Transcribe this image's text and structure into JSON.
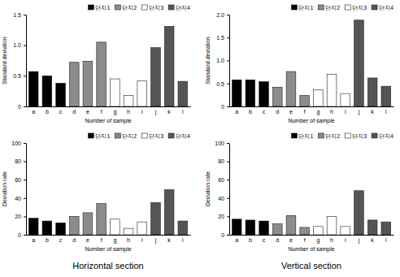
{
  "chart_data": [
    {
      "type": "bar",
      "xlabel": "Number of sample",
      "ylabel": "Standard deviation",
      "categories": [
        "a",
        "b",
        "c",
        "d",
        "e",
        "f",
        "g",
        "h",
        "i",
        "j",
        "k",
        "l"
      ],
      "series": [
        {
          "name": "단지1",
          "color": "#000000",
          "values": [
            0.57,
            0.5,
            0.38,
            null,
            null,
            null,
            null,
            null,
            null,
            null,
            null,
            null
          ]
        },
        {
          "name": "단지2",
          "color": "#8c8c8c",
          "values": [
            null,
            null,
            null,
            0.72,
            0.74,
            1.05,
            null,
            null,
            null,
            null,
            null,
            null
          ]
        },
        {
          "name": "단지3",
          "color": "#ffffff",
          "values": [
            null,
            null,
            null,
            null,
            null,
            null,
            0.45,
            0.18,
            0.42,
            null,
            null,
            null
          ]
        },
        {
          "name": "단지4",
          "color": "#555555",
          "values": [
            null,
            null,
            null,
            null,
            null,
            null,
            null,
            null,
            null,
            0.96,
            1.31,
            0.41
          ]
        }
      ],
      "ylim": [
        0,
        1.5
      ],
      "yticks": [
        0,
        0.5,
        {
          "value": 1,
          "label": "1.0"
        },
        1.5
      ],
      "grid": false,
      "legend": "top-right"
    },
    {
      "type": "bar",
      "xlabel": "Number of sample",
      "ylabel": "Standard deviation",
      "categories": [
        "a",
        "b",
        "c",
        "d",
        "e",
        "f",
        "g",
        "h",
        "i",
        "j",
        "k",
        "l"
      ],
      "series": [
        {
          "name": "단지1",
          "color": "#000000",
          "values": [
            0.58,
            0.58,
            0.54,
            null,
            null,
            null,
            null,
            null,
            null,
            null,
            null,
            null
          ]
        },
        {
          "name": "단지2",
          "color": "#8c8c8c",
          "values": [
            null,
            null,
            null,
            0.42,
            0.76,
            0.24,
            null,
            null,
            null,
            null,
            null,
            null
          ]
        },
        {
          "name": "단지3",
          "color": "#ffffff",
          "values": [
            null,
            null,
            null,
            null,
            null,
            null,
            0.36,
            0.7,
            0.28,
            null,
            null,
            null
          ]
        },
        {
          "name": "단지4",
          "color": "#555555",
          "values": [
            null,
            null,
            null,
            null,
            null,
            null,
            null,
            null,
            null,
            1.88,
            0.62,
            0.44
          ]
        }
      ],
      "ylim": [
        0,
        2
      ],
      "yticks": [
        0,
        0.5,
        {
          "value": 1,
          "label": "1.0"
        },
        1.5,
        {
          "value": 2,
          "label": "2.0"
        }
      ],
      "grid": false,
      "legend": "top-right"
    },
    {
      "type": "bar",
      "xlabel": "Number of sample",
      "ylabel": "Deviation rate",
      "categories": [
        "a",
        "b",
        "c",
        "d",
        "e",
        "f",
        "g",
        "h",
        "i",
        "j",
        "k",
        "l"
      ],
      "series": [
        {
          "name": "단지1",
          "color": "#000000",
          "values": [
            18,
            15,
            13,
            null,
            null,
            null,
            null,
            null,
            null,
            null,
            null,
            null
          ]
        },
        {
          "name": "단지2",
          "color": "#8c8c8c",
          "values": [
            null,
            null,
            null,
            20,
            24,
            34,
            null,
            null,
            null,
            null,
            null,
            null
          ]
        },
        {
          "name": "단지3",
          "color": "#ffffff",
          "values": [
            null,
            null,
            null,
            null,
            null,
            null,
            17,
            7,
            14,
            null,
            null,
            null
          ]
        },
        {
          "name": "단지4",
          "color": "#555555",
          "values": [
            null,
            null,
            null,
            null,
            null,
            null,
            null,
            null,
            null,
            35,
            49,
            15
          ]
        }
      ],
      "ylim": [
        0,
        100
      ],
      "yticks": [
        0,
        20,
        40,
        60,
        80,
        100
      ],
      "grid": false,
      "legend": "top-right"
    },
    {
      "type": "bar",
      "xlabel": "Number of sample",
      "ylabel": "Deviation rate",
      "categories": [
        "a",
        "b",
        "c",
        "d",
        "e",
        "f",
        "g",
        "h",
        "i",
        "j",
        "k",
        "l"
      ],
      "series": [
        {
          "name": "단지1",
          "color": "#000000",
          "values": [
            17,
            16,
            15,
            null,
            null,
            null,
            null,
            null,
            null,
            null,
            null,
            null
          ]
        },
        {
          "name": "단지2",
          "color": "#8c8c8c",
          "values": [
            null,
            null,
            null,
            12,
            21,
            8,
            null,
            null,
            null,
            null,
            null,
            null
          ]
        },
        {
          "name": "단지3",
          "color": "#ffffff",
          "values": [
            null,
            null,
            null,
            null,
            null,
            null,
            9,
            20,
            9,
            null,
            null,
            null
          ]
        },
        {
          "name": "단지4",
          "color": "#555555",
          "values": [
            null,
            null,
            null,
            null,
            null,
            null,
            null,
            null,
            null,
            48,
            16,
            14
          ]
        }
      ],
      "ylim": [
        0,
        100
      ],
      "yticks": [
        0,
        20,
        40,
        60,
        80,
        100
      ],
      "grid": false,
      "legend": "top-right"
    }
  ],
  "captions": [
    "Horizontal section",
    "Vertical section"
  ]
}
